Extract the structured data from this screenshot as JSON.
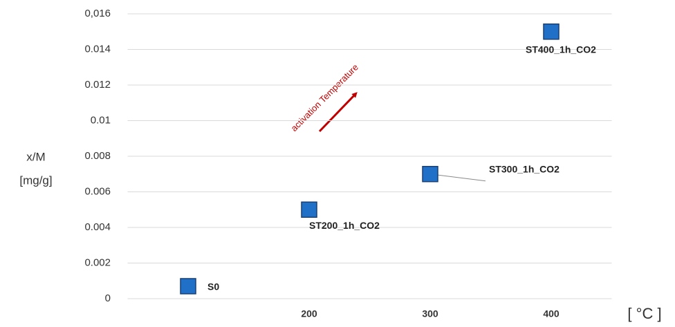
{
  "chart_data": {
    "type": "scatter",
    "y_label_lines": [
      "x/M",
      "[mg/g]"
    ],
    "x_label": "[ °C ]",
    "annotation": "activation Temperature",
    "x": [
      100,
      200,
      300,
      400
    ],
    "values": [
      0.0007,
      0.005,
      0.007,
      0.015
    ],
    "point_labels": [
      "S0",
      "ST200_1h_CO2",
      "ST300_1h_CO2",
      "ST400_1h_CO2"
    ],
    "color": "#2070c8",
    "xlim": [
      50,
      450
    ],
    "xticks": [
      200,
      300,
      400
    ],
    "ylim": [
      0,
      0.016
    ],
    "yticks": [
      0,
      0.002,
      0.004,
      0.006,
      0.008,
      0.01,
      0.012,
      0.014,
      {
        "value": 0.016,
        "label": "0,016"
      }
    ],
    "grid": true
  }
}
